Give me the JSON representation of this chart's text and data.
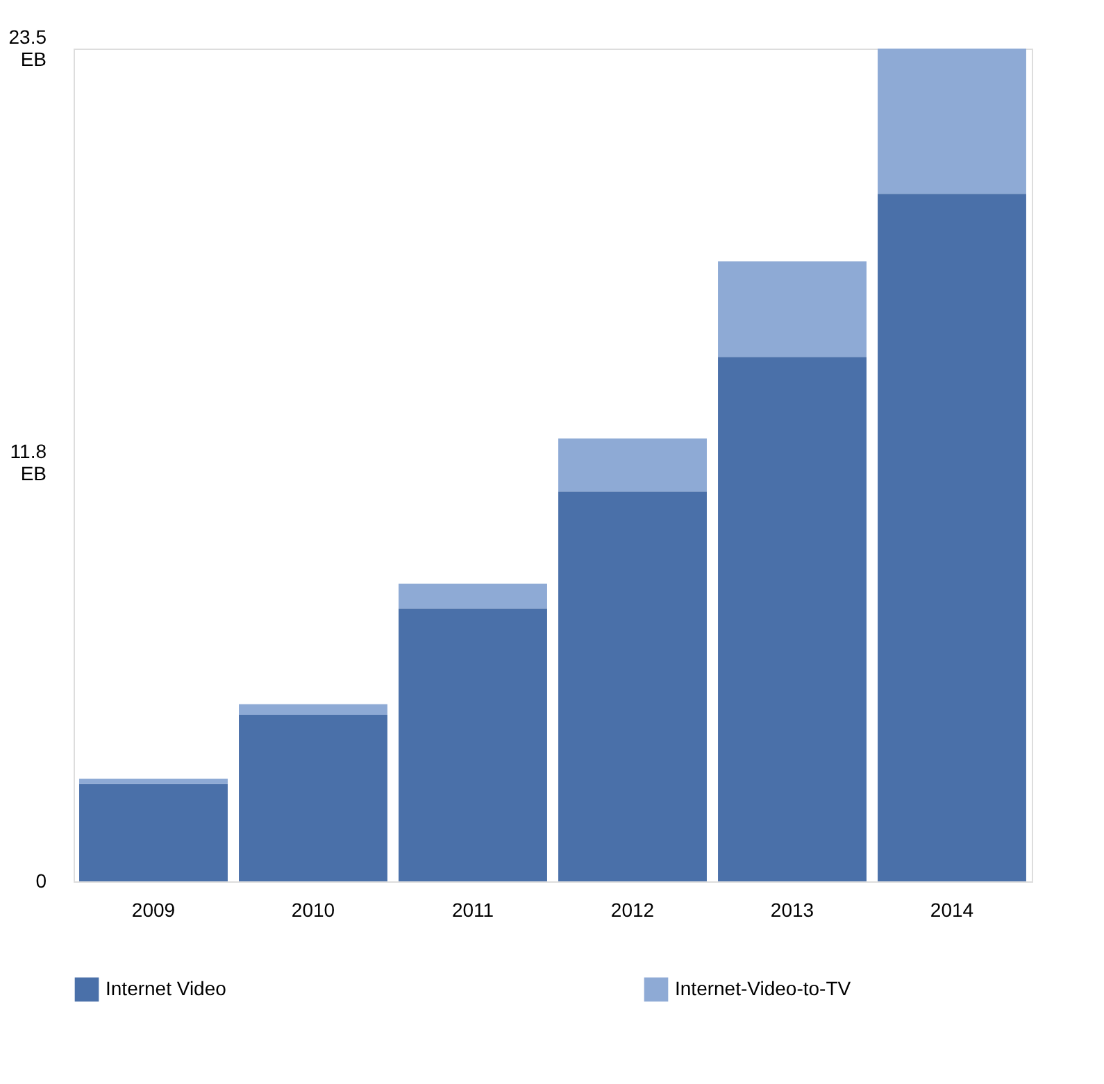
{
  "chart_data": {
    "type": "bar",
    "stacked": true,
    "categories": [
      "2009",
      "2010",
      "2011",
      "2012",
      "2013",
      "2014"
    ],
    "series": [
      {
        "name": "Internet Video",
        "color": "#4a70a9",
        "values": [
          2.75,
          4.7,
          7.7,
          11.0,
          14.8,
          19.4
        ]
      },
      {
        "name": "Internet-Video-to-TV",
        "color": "#8eaad5",
        "values": [
          0.15,
          0.3,
          0.7,
          1.5,
          2.7,
          4.1
        ]
      }
    ],
    "ylim": [
      0,
      23.5
    ],
    "yticks": [
      0,
      {
        "value": 11.8,
        "label": "11.8 EB"
      },
      {
        "value": 23.5,
        "label": "23.5 EB"
      }
    ],
    "grid": false,
    "legend": "bottom"
  }
}
